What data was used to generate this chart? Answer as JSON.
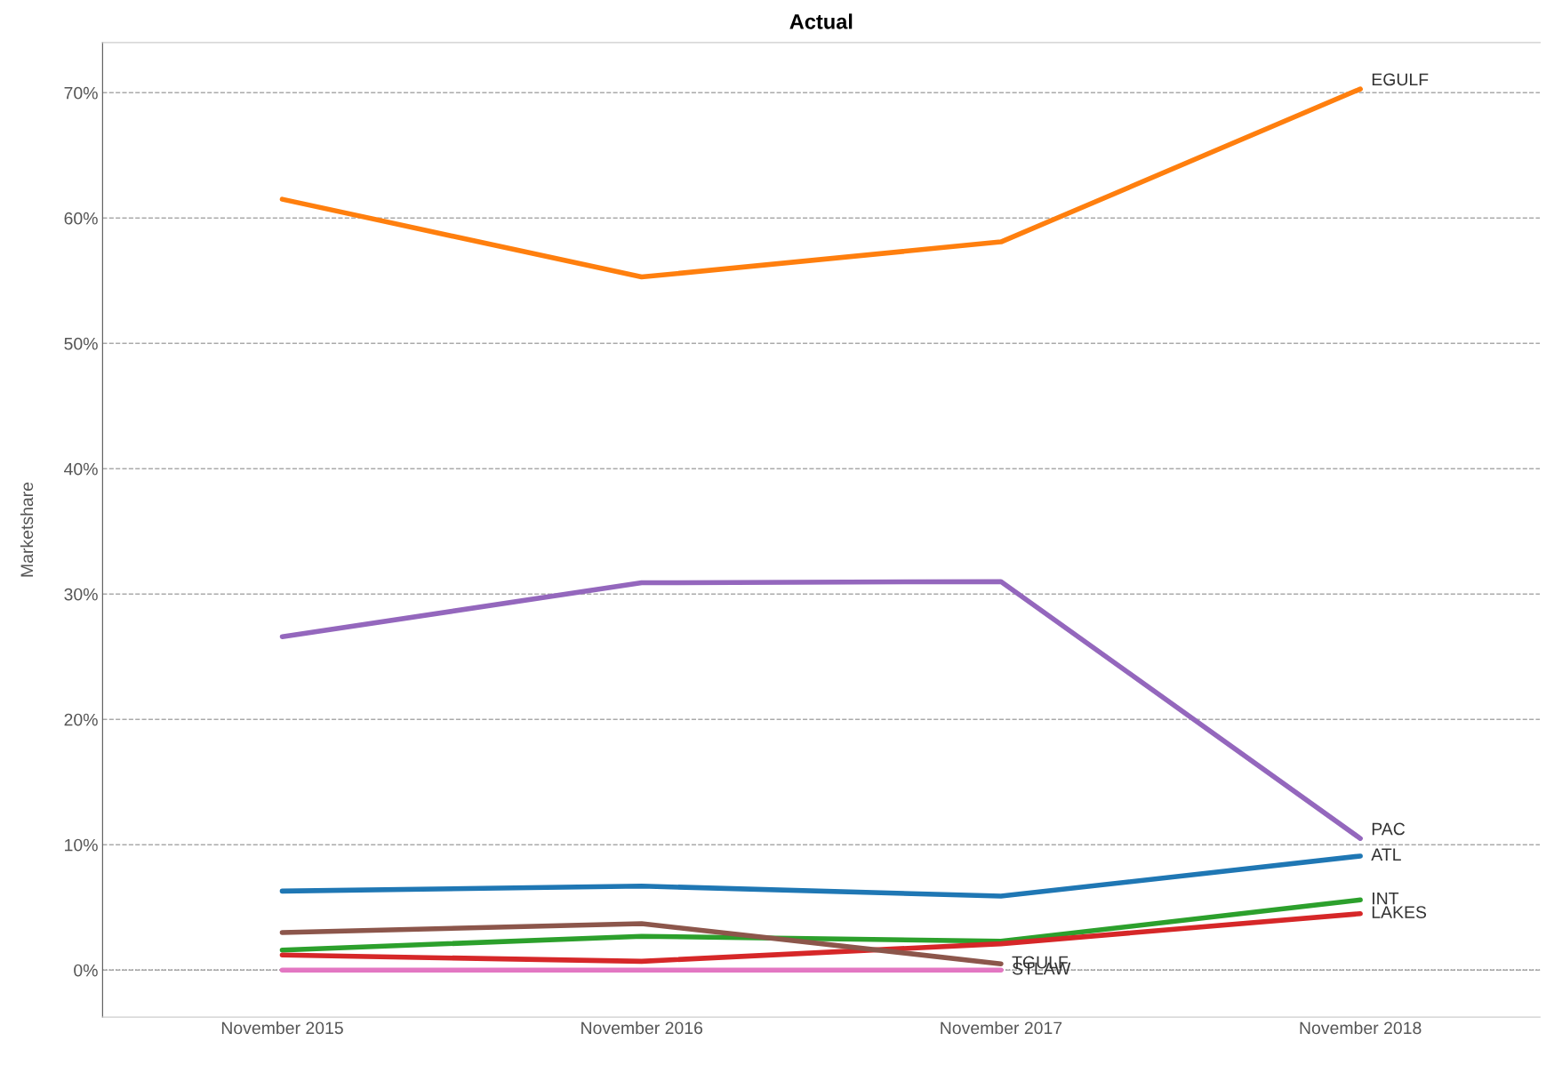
{
  "chart_data": {
    "type": "line",
    "title": "Actual",
    "ylabel": "Marketshare",
    "categories": [
      "November 2015",
      "November 2016",
      "November 2017",
      "November 2018"
    ],
    "series": [
      {
        "name": "EGULF",
        "color": "#ff7f0e",
        "values": [
          61.5,
          55.3,
          58.1,
          70.3
        ]
      },
      {
        "name": "PAC",
        "color": "#9467bd",
        "values": [
          26.6,
          30.9,
          31.0,
          10.5
        ]
      },
      {
        "name": "ATL",
        "color": "#1f77b4",
        "values": [
          6.3,
          6.7,
          5.9,
          9.1
        ]
      },
      {
        "name": "INT",
        "color": "#2ca02c",
        "values": [
          1.6,
          2.7,
          2.3,
          5.6
        ]
      },
      {
        "name": "LAKES",
        "color": "#d62728",
        "values": [
          1.2,
          0.7,
          2.1,
          4.5
        ]
      },
      {
        "name": "TGULF",
        "color": "#8c564b",
        "values": [
          3.0,
          3.7,
          0.5,
          null
        ]
      },
      {
        "name": "STLAW",
        "color": "#e377c2",
        "values": [
          0,
          0,
          0,
          null
        ]
      }
    ],
    "ylim": [
      -3.75,
      74.0
    ],
    "yticks": [
      {
        "value": 0,
        "label": "0%"
      },
      {
        "value": 10,
        "label": "10%"
      },
      {
        "value": 20,
        "label": "20%"
      },
      {
        "value": 30,
        "label": "30%"
      },
      {
        "value": 40,
        "label": "40%"
      },
      {
        "value": 50,
        "label": "50%"
      },
      {
        "value": 60,
        "label": "60%"
      },
      {
        "value": 70,
        "label": "70%"
      }
    ],
    "ref_lines": [
      {
        "axis": "y",
        "value": 0,
        "line_style": "dotted",
        "color": "#555555"
      }
    ],
    "grid": "y",
    "legend": false,
    "marker": "none",
    "line_style": "solid"
  }
}
